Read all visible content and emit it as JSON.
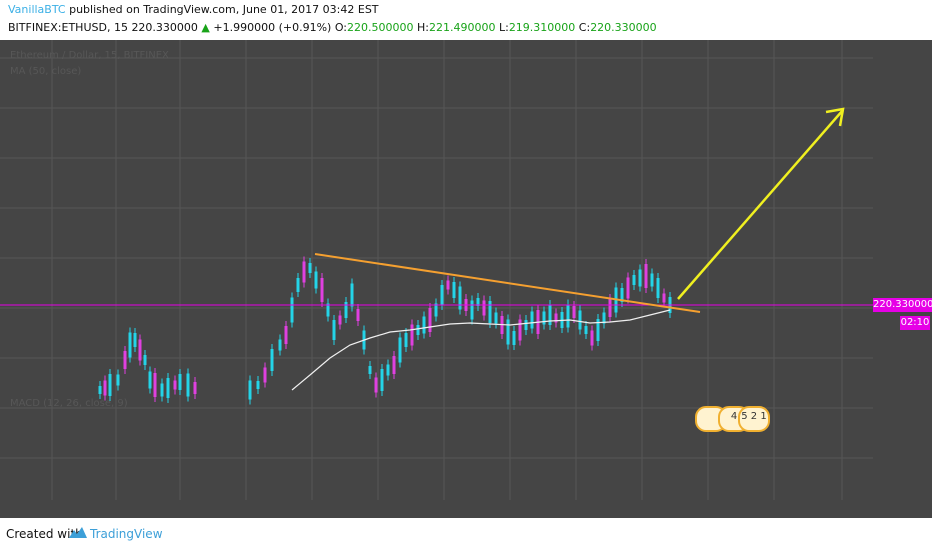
{
  "header": {
    "author": "VanillaBTC",
    "published": " published on TradingView.com, June 01, 2017 03:42 EST",
    "symbol": "BITFINEX:ETHUSD, 15",
    "last_price": "220.330000",
    "change_arrow": "▲",
    "change": "+1.990000 (+0.91%)",
    "o_label": "O:",
    "o_value": "220.500000",
    "h_label": "H:",
    "h_value": "221.490000",
    "l_label": "L:",
    "l_value": "219.310000",
    "c_label": "C:",
    "c_value": "220.330000"
  },
  "chart": {
    "ghost_title": "Ethereum / Dollar, 15, BITFINEX",
    "ghost_ma": "MA (50, close)",
    "ghost_macd": "MACD (12, 26, close, 9)",
    "price_tag": "220.330000",
    "time_tag": "02:10",
    "badge_1": "4",
    "badge_2": "5 2 1",
    "colors": {
      "bg": "#454545",
      "up_candle": "#24d4e8",
      "down_candle": "#e040e0",
      "ma_line": "#f0f0f0",
      "trend_line": "#f5a030",
      "arrow": "#f0f020",
      "price_line": "#e600e6"
    }
  },
  "footer": {
    "created_with": "Created with",
    "brand": "TradingView",
    "logo_icon": "tradingview-logo-icon"
  }
}
